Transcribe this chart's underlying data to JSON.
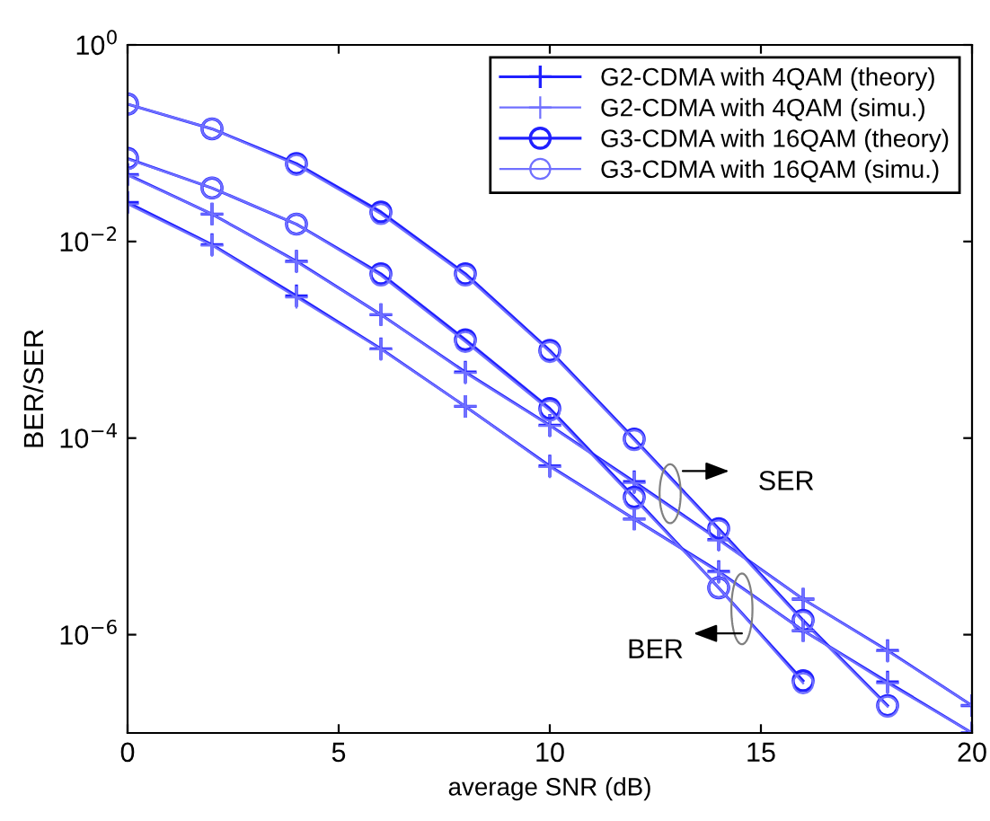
{
  "chart_data": {
    "type": "line",
    "xlabel": "average SNR (dB)",
    "ylabel": "BER/SER",
    "log": "y",
    "x": [
      0,
      2,
      4,
      6,
      8,
      10,
      12,
      14,
      16,
      18,
      20
    ],
    "xlim": [
      0,
      20
    ],
    "xticks": [
      0,
      5,
      10,
      15,
      20
    ],
    "ylim": [
      1e-07,
      1
    ],
    "yticks": [
      {
        "value": 1,
        "label": "10$^{0}$"
      },
      {
        "value": 0.01,
        "label": "10$^{−2}$"
      },
      {
        "value": 0.0001,
        "label": "10$^{−4}$"
      },
      {
        "value": 1e-06,
        "label": "10$^{−6}$"
      }
    ],
    "grid": false,
    "legend": "top right",
    "line_style": "solid",
    "series": [
      {
        "name": "G2-CDMA with 4QAM (theory)",
        "color": "#2020ff",
        "marker": "cross",
        "values": [
          0.048,
          0.019,
          0.0063,
          0.0018,
          0.00047,
          0.000135,
          3.6e-05,
          9.3e-06,
          2.3e-06,
          6.9e-07,
          1.9e-07
        ]
      },
      {
        "name": "G2-CDMA with 4QAM (simu.)",
        "color": "#7070ff",
        "marker": "cross",
        "values": [
          0.047,
          0.019,
          0.0062,
          0.0018,
          0.00046,
          0.000133,
          3.5e-05,
          9.1e-06,
          2.3e-06,
          6.8e-07,
          1.9e-07
        ]
      },
      {
        "name": "G3-CDMA with 16QAM (theory)",
        "color": "#2020ff",
        "marker": "circle",
        "values": [
          0.25,
          0.14,
          0.062,
          0.02,
          0.0047,
          0.00078,
          9.8e-05,
          1.2e-05,
          1.4e-06,
          1.9e-07,
          null
        ]
      },
      {
        "name": "G3-CDMA with 16QAM (simu.)",
        "color": "#7070ff",
        "marker": "circle",
        "values": [
          0.25,
          0.14,
          0.06,
          0.019,
          0.0045,
          0.00075,
          9.5e-05,
          1.15e-05,
          1.35e-06,
          1.85e-07,
          null
        ]
      },
      {
        "color": "#2020ff",
        "marker": "cross",
        "values": [
          0.025,
          0.0093,
          0.0028,
          0.00081,
          0.00021,
          5.2e-05,
          1.5e-05,
          4.4e-06,
          1.1e-06,
          3.3e-07,
          1e-07
        ]
      },
      {
        "color": "#7070ff",
        "marker": "cross",
        "values": [
          0.024,
          0.0091,
          0.0027,
          0.0008,
          0.00021,
          5.1e-05,
          1.5e-05,
          4.3e-06,
          1.1e-06,
          3.2e-07,
          1e-07
        ]
      },
      {
        "color": "#2020ff",
        "marker": "circle",
        "values": [
          0.07,
          0.035,
          0.015,
          0.0047,
          0.001,
          0.0002,
          2.5e-05,
          3e-06,
          3.4e-07,
          null,
          null
        ]
      },
      {
        "color": "#7070ff",
        "marker": "circle",
        "values": [
          0.069,
          0.035,
          0.015,
          0.0045,
          0.00095,
          0.00019,
          2.4e-05,
          3e-06,
          3.2e-07,
          null,
          null
        ]
      }
    ],
    "annotations": [
      "SER",
      "BER"
    ]
  }
}
